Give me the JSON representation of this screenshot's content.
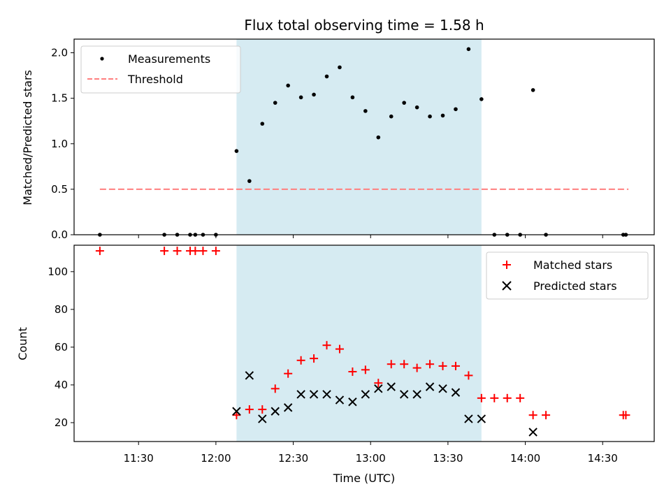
{
  "chart_data": [
    {
      "type": "scatter",
      "title": "Flux total observing time = 1.58 h",
      "xlabel": "",
      "ylabel": "Matched/Predicted stars",
      "ylim": [
        0,
        2.15
      ],
      "yticks": [
        "0.0",
        "0.5",
        "1.0",
        "1.5",
        "2.0"
      ],
      "grid": false,
      "legend_position": "top-left",
      "highlight_span": {
        "start": "12:08",
        "end": "13:43",
        "color": "#add8e6"
      },
      "series": [
        {
          "name": "Measurements",
          "marker": "dot",
          "color": "#000000",
          "x": [
            "11:15",
            "11:40",
            "11:45",
            "11:50",
            "11:52",
            "11:55",
            "12:00",
            "12:08",
            "12:13",
            "12:18",
            "12:23",
            "12:28",
            "12:33",
            "12:38",
            "12:43",
            "12:48",
            "12:53",
            "12:58",
            "13:03",
            "13:08",
            "13:13",
            "13:18",
            "13:23",
            "13:28",
            "13:33",
            "13:38",
            "13:43",
            "13:48",
            "13:53",
            "13:58",
            "14:03",
            "14:08",
            "14:38",
            "14:39"
          ],
          "y": [
            0,
            0,
            0,
            0,
            0,
            0,
            0,
            0.92,
            0.59,
            1.22,
            1.45,
            1.64,
            1.51,
            1.54,
            1.74,
            1.84,
            1.51,
            1.36,
            1.07,
            1.3,
            1.45,
            1.4,
            1.3,
            1.31,
            1.38,
            2.04,
            1.49,
            0,
            0,
            0,
            1.59,
            0,
            0,
            0
          ]
        },
        {
          "name": "Threshold",
          "style": "dashed",
          "color": "#ff7f7f",
          "x": [
            "11:15",
            "14:40"
          ],
          "y": [
            0.5,
            0.5
          ]
        }
      ]
    },
    {
      "type": "scatter",
      "xlabel": "Time (UTC)",
      "ylabel": "Count",
      "ylim": [
        10,
        114
      ],
      "xlim": [
        "11:05",
        "14:50"
      ],
      "xticks": [
        "11:30",
        "12:00",
        "12:30",
        "13:00",
        "13:30",
        "14:00",
        "14:30"
      ],
      "yticks": [
        "20",
        "40",
        "60",
        "80",
        "100"
      ],
      "grid": false,
      "legend_position": "top-right",
      "highlight_span": {
        "start": "12:08",
        "end": "13:43",
        "color": "#add8e6"
      },
      "series": [
        {
          "name": "Matched stars",
          "marker": "plus",
          "color": "#ff0000",
          "x": [
            "11:15",
            "11:40",
            "11:45",
            "11:50",
            "11:52",
            "11:55",
            "12:00",
            "12:08",
            "12:13",
            "12:18",
            "12:23",
            "12:28",
            "12:33",
            "12:38",
            "12:43",
            "12:48",
            "12:53",
            "12:58",
            "13:03",
            "13:08",
            "13:13",
            "13:18",
            "13:23",
            "13:28",
            "13:33",
            "13:38",
            "13:43",
            "13:48",
            "13:53",
            "13:58",
            "14:03",
            "14:08",
            "14:38",
            "14:39"
          ],
          "y": [
            111,
            111,
            111,
            111,
            111,
            111,
            111,
            24,
            27,
            27,
            38,
            46,
            53,
            54,
            61,
            59,
            47,
            48,
            41,
            51,
            51,
            49,
            51,
            50,
            50,
            45,
            33,
            33,
            33,
            33,
            24,
            24,
            24,
            24
          ]
        },
        {
          "name": "Predicted stars",
          "marker": "x",
          "color": "#000000",
          "x": [
            "12:08",
            "12:13",
            "12:18",
            "12:23",
            "12:28",
            "12:33",
            "12:38",
            "12:43",
            "12:48",
            "12:53",
            "12:58",
            "13:03",
            "13:08",
            "13:13",
            "13:18",
            "13:23",
            "13:28",
            "13:33",
            "13:38",
            "13:43",
            "14:03"
          ],
          "y": [
            26,
            45,
            22,
            26,
            28,
            35,
            35,
            35,
            32,
            31,
            35,
            38,
            39,
            35,
            35,
            39,
            38,
            36,
            22,
            22,
            15
          ]
        }
      ]
    }
  ]
}
